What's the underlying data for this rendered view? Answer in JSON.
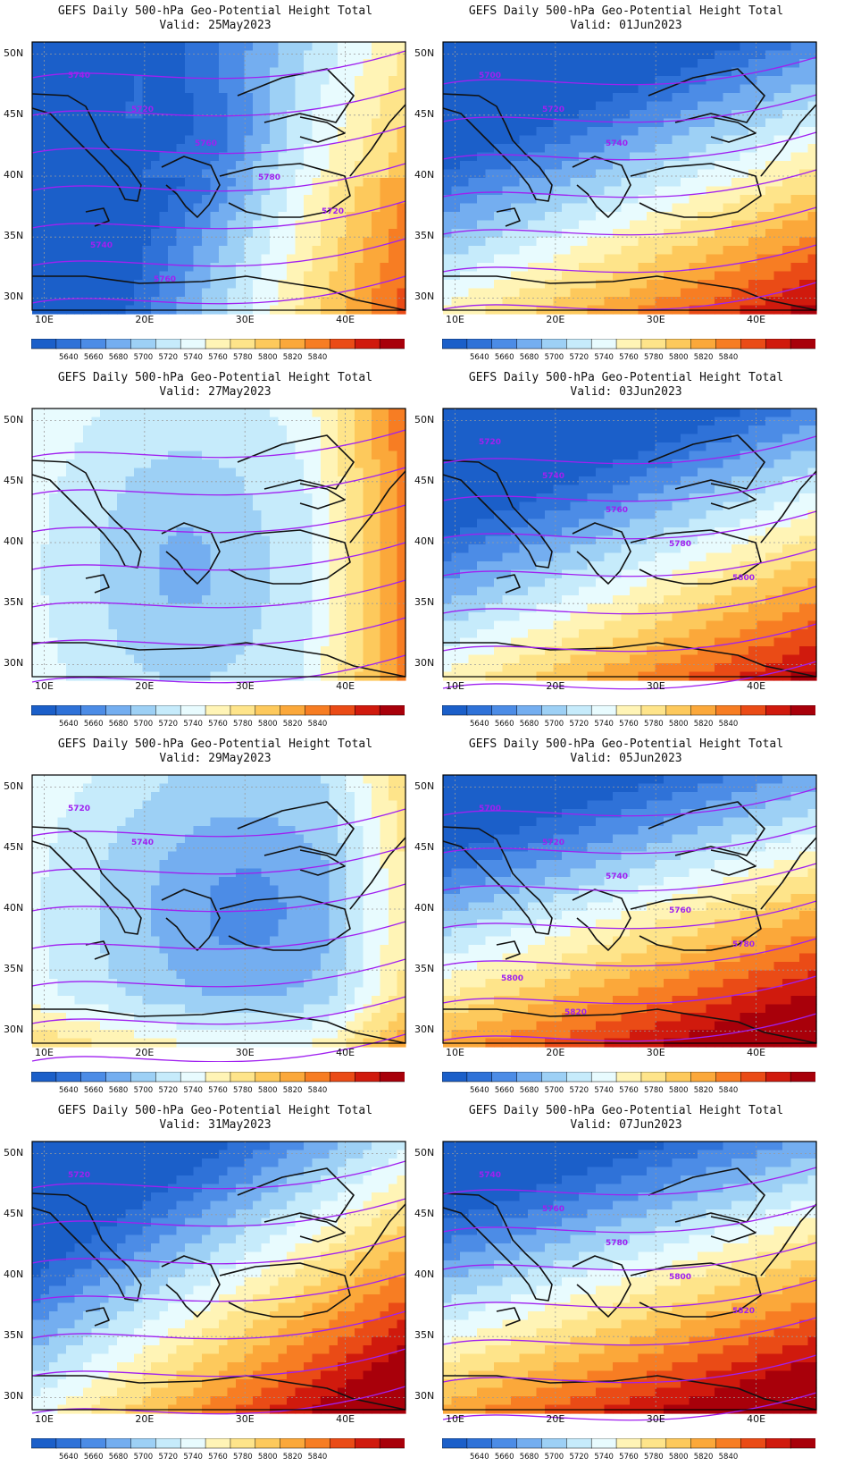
{
  "panels": [
    {
      "title": "GEFS Daily 500-hPa Geo-Potential Height Total",
      "valid": "Valid: 25May2023",
      "regime": "trough-west",
      "contour_labels": [
        "5740",
        "5720",
        "5760",
        "5780",
        "5720",
        "5740",
        "5760"
      ]
    },
    {
      "title": "GEFS Daily 500-hPa Geo-Potential Height Total",
      "valid": "Valid: 01Jun2023",
      "regime": "ridge-south",
      "contour_labels": [
        "5700",
        "5720",
        "5740"
      ]
    },
    {
      "title": "GEFS Daily 500-hPa Geo-Potential Height Total",
      "valid": "Valid: 27May2023",
      "regime": "trough-central",
      "contour_labels": []
    },
    {
      "title": "GEFS Daily 500-hPa Geo-Potential Height Total",
      "valid": "Valid: 03Jun2023",
      "regime": "ridge-south",
      "contour_labels": [
        "5720",
        "5740",
        "5760",
        "5780",
        "5800"
      ]
    },
    {
      "title": "GEFS Daily 500-hPa Geo-Potential Height Total",
      "valid": "Valid: 29May2023",
      "regime": "cutoff-low",
      "contour_labels": [
        "5720",
        "5740"
      ]
    },
    {
      "title": "GEFS Daily 500-hPa Geo-Potential Height Total",
      "valid": "Valid: 05Jun2023",
      "regime": "strong-ridge",
      "contour_labels": [
        "5700",
        "5720",
        "5740",
        "5760",
        "5780",
        "5800",
        "5820"
      ]
    },
    {
      "title": "GEFS Daily 500-hPa Geo-Potential Height Total",
      "valid": "Valid: 31May2023",
      "regime": "ridge-southeast",
      "contour_labels": [
        "5720"
      ]
    },
    {
      "title": "GEFS Daily 500-hPa Geo-Potential Height Total",
      "valid": "Valid: 07Jun2023",
      "regime": "strong-ridge",
      "contour_labels": [
        "5740",
        "5760",
        "5780",
        "5800",
        "5820"
      ]
    }
  ],
  "axes": {
    "lon_ticks": [
      "10E",
      "20E",
      "30E",
      "40E"
    ],
    "lat_ticks": [
      "50N",
      "45N",
      "40N",
      "35N",
      "30N"
    ]
  },
  "colorbar": {
    "labels": [
      "5640",
      "5660",
      "5680",
      "5700",
      "5720",
      "5740",
      "5760",
      "5780",
      "5800",
      "5820",
      "5840"
    ],
    "colors": [
      "#1b5fc9",
      "#2f72d8",
      "#4c8ce6",
      "#74aef0",
      "#9dd0f5",
      "#c6ebfb",
      "#e8fbfe",
      "#fff4b6",
      "#fee48a",
      "#fdc95c",
      "#fba83a",
      "#f77d23",
      "#ea4b16",
      "#d01a0d",
      "#a8000a"
    ]
  },
  "contour_color": "#a020f0"
}
